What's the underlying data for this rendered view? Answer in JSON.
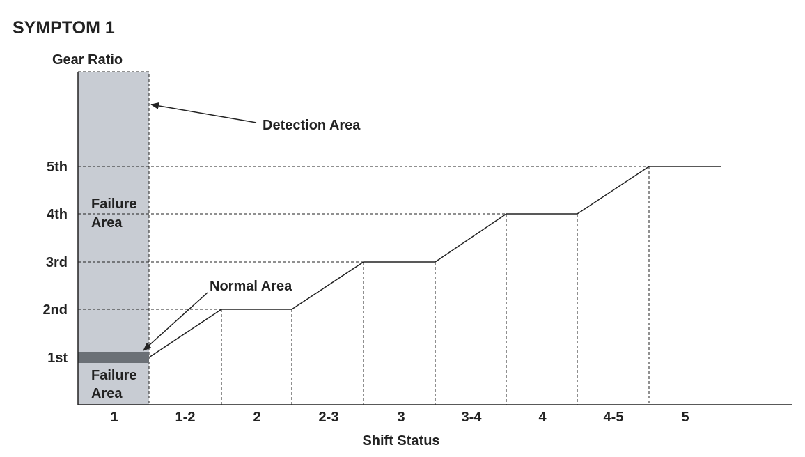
{
  "title": "SYMPTOM 1",
  "diagram": {
    "y_axis_label": "Gear Ratio",
    "x_axis_label": "Shift Status",
    "gears": [
      "1st",
      "2nd",
      "3rd",
      "4th",
      "5th"
    ],
    "shift_statuses": [
      "1",
      "1-2",
      "2",
      "2-3",
      "3",
      "3-4",
      "4",
      "4-5",
      "5"
    ],
    "annotations": {
      "detection_area": "Detection Area",
      "normal_area": "Normal Area",
      "failure_area_upper": [
        "Failure",
        "Area"
      ],
      "failure_area_lower": [
        "Failure",
        "Area"
      ]
    },
    "colors": {
      "detection_area": "#c8ccd3",
      "normal_band": "#6b7076",
      "line": "#222222"
    }
  }
}
